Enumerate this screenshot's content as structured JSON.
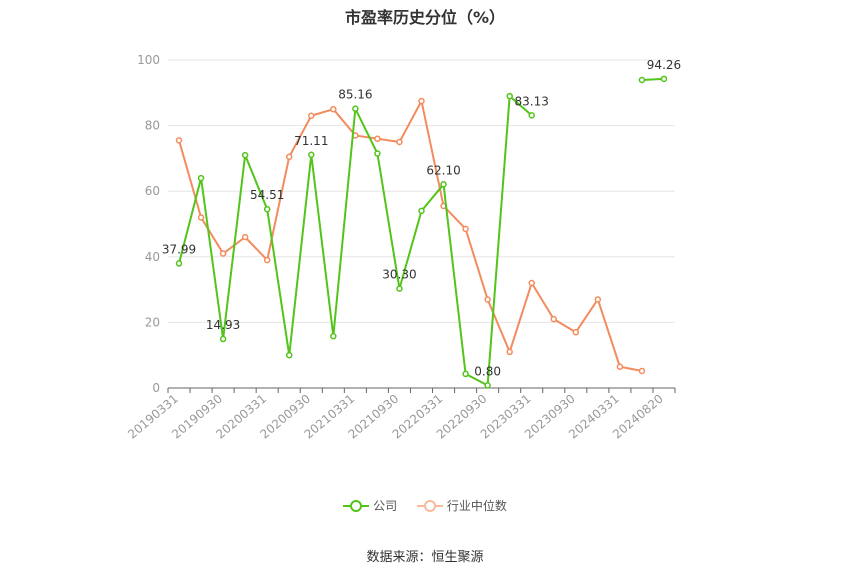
{
  "chart_data": {
    "type": "line",
    "title": "市盈率历史分位（%）",
    "ylim": [
      0,
      100
    ],
    "yticks": [
      0,
      20,
      40,
      60,
      80,
      100
    ],
    "grid": true,
    "legend_position": "bottom",
    "categories": [
      "20190331",
      "20190630",
      "20190930",
      "20191231",
      "20200331",
      "20200630",
      "20200930",
      "20201231",
      "20210331",
      "20210630",
      "20210930",
      "20211231",
      "20220331",
      "20220630",
      "20220930",
      "20221231",
      "20230331",
      "20230630",
      "20230930",
      "20231231",
      "20240331",
      "20240630",
      "20240820"
    ],
    "xtick_labels": [
      "20190331",
      "20190930",
      "20200331",
      "20200930",
      "20210331",
      "20210930",
      "20220331",
      "20220930",
      "20230331",
      "20230930",
      "20240331",
      "20240820"
    ],
    "series": [
      {
        "name": "公司",
        "color": "#52c41a",
        "values": [
          37.99,
          64.0,
          14.93,
          71.0,
          54.51,
          10.0,
          71.11,
          15.8,
          85.16,
          71.5,
          30.3,
          54.0,
          62.1,
          4.3,
          0.8,
          89.0,
          83.13,
          null,
          null,
          null,
          null,
          93.9,
          94.26
        ],
        "labels": {
          "0": "37.99",
          "2": "14.93",
          "4": "54.51",
          "6": "71.11",
          "8": "85.16",
          "10": "30.30",
          "12": "62.10",
          "14": "0.80",
          "16": "83.13",
          "22": "94.26"
        }
      },
      {
        "name": "行业中位数",
        "color": "#f28c5e",
        "values": [
          75.5,
          52.0,
          41.0,
          46.0,
          39.0,
          70.5,
          83.0,
          85.0,
          77.0,
          76.0,
          75.0,
          87.5,
          55.5,
          48.5,
          27.0,
          11.0,
          32.0,
          21.0,
          17.0,
          27.0,
          6.5,
          5.2,
          null
        ],
        "labels": {}
      }
    ]
  },
  "legend": {
    "company": "公司",
    "industry": "行业中位数"
  },
  "footer": {
    "source": "数据来源：恒生聚源"
  }
}
